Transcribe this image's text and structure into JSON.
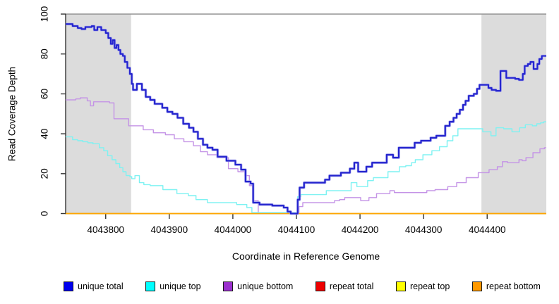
{
  "chart_data": {
    "type": "line",
    "title": "",
    "xlabel": "Coordinate in Reference Genome",
    "ylabel": "Read Coverage Depth",
    "xlim": [
      4043737,
      4044493
    ],
    "ylim": [
      0,
      100
    ],
    "x_ticks": [
      4043800,
      4043900,
      4044000,
      4044100,
      4044200,
      4044300,
      4044400
    ],
    "y_ticks": [
      0,
      20,
      40,
      60,
      80,
      100
    ],
    "grid": false,
    "legend_position": "bottom",
    "interpolation": "step-after",
    "shaded_region_color": "#dcdcdc",
    "shaded_regions": [
      {
        "x0": 4043737,
        "x1": 4043840
      },
      {
        "x0": 4044391,
        "x1": 4044493
      }
    ],
    "series": [
      {
        "key": "unique_total",
        "name": "unique total",
        "line_color": "#2323ce",
        "halo_color": "#a3a3ec",
        "legend_color": "#0000ee",
        "points": [
          [
            4043737,
            95
          ],
          [
            4043748,
            94
          ],
          [
            4043756,
            93
          ],
          [
            4043762,
            92.5
          ],
          [
            4043768,
            93.5
          ],
          [
            4043778,
            94
          ],
          [
            4043782,
            92
          ],
          [
            4043787,
            93.5
          ],
          [
            4043793,
            92
          ],
          [
            4043800,
            90.5
          ],
          [
            4043804,
            88
          ],
          [
            4043808,
            85
          ],
          [
            4043811,
            87
          ],
          [
            4043814,
            83
          ],
          [
            4043817,
            84.5
          ],
          [
            4043820,
            82
          ],
          [
            4043823,
            80
          ],
          [
            4043827,
            79
          ],
          [
            4043830,
            76
          ],
          [
            4043834,
            73
          ],
          [
            4043838,
            70
          ],
          [
            4043841,
            65
          ],
          [
            4043843,
            62
          ],
          [
            4043849,
            65
          ],
          [
            4043857,
            62
          ],
          [
            4043863,
            58.5
          ],
          [
            4043870,
            57
          ],
          [
            4043877,
            55
          ],
          [
            4043889,
            53
          ],
          [
            4043897,
            51
          ],
          [
            4043905,
            50
          ],
          [
            4043913,
            48
          ],
          [
            4043922,
            45
          ],
          [
            4043931,
            43
          ],
          [
            4043938,
            41
          ],
          [
            4043945,
            37.5
          ],
          [
            4043953,
            34.5
          ],
          [
            4043960,
            33
          ],
          [
            4043968,
            32
          ],
          [
            4043976,
            28.5
          ],
          [
            4043990,
            26.5
          ],
          [
            4044004,
            24.5
          ],
          [
            4044013,
            22
          ],
          [
            4044020,
            16
          ],
          [
            4044028,
            15
          ],
          [
            4044032,
            5.5
          ],
          [
            4044042,
            4.5
          ],
          [
            4044062,
            4
          ],
          [
            4044080,
            3
          ],
          [
            4044086,
            1
          ],
          [
            4044091,
            0
          ],
          [
            4044102,
            7
          ],
          [
            4044105,
            13
          ],
          [
            4044112,
            15.5
          ],
          [
            4044145,
            17
          ],
          [
            4044152,
            19
          ],
          [
            4044170,
            20.5
          ],
          [
            4044184,
            22.5
          ],
          [
            4044191,
            25.5
          ],
          [
            4044197,
            21
          ],
          [
            4044210,
            23.5
          ],
          [
            4044219,
            25.5
          ],
          [
            4044242,
            29.5
          ],
          [
            4044252,
            28
          ],
          [
            4044261,
            33
          ],
          [
            4044286,
            35.5
          ],
          [
            4044296,
            36.5
          ],
          [
            4044311,
            38
          ],
          [
            4044320,
            39
          ],
          [
            4044334,
            44
          ],
          [
            4044341,
            46
          ],
          [
            4044347,
            48
          ],
          [
            4044352,
            50
          ],
          [
            4044357,
            52
          ],
          [
            4044362,
            54.5
          ],
          [
            4044366,
            56.5
          ],
          [
            4044371,
            59
          ],
          [
            4044379,
            60
          ],
          [
            4044384,
            62.5
          ],
          [
            4044388,
            64.5
          ],
          [
            4044402,
            63
          ],
          [
            4044407,
            62
          ],
          [
            4044414,
            61.5
          ],
          [
            4044421,
            71.5
          ],
          [
            4044430,
            68
          ],
          [
            4044444,
            67.5
          ],
          [
            4044450,
            67
          ],
          [
            4044456,
            70
          ],
          [
            4044459,
            74
          ],
          [
            4044464,
            75
          ],
          [
            4044468,
            76
          ],
          [
            4044473,
            72.5
          ],
          [
            4044479,
            75
          ],
          [
            4044482,
            77.5
          ],
          [
            4044486,
            79
          ]
        ]
      },
      {
        "key": "unique_top",
        "name": "unique top",
        "line_color": "#7df2f2",
        "legend_color": "#00ffff",
        "points": [
          [
            4043737,
            38.5
          ],
          [
            4043748,
            37
          ],
          [
            4043756,
            36.5
          ],
          [
            4043764,
            36
          ],
          [
            4043772,
            35.5
          ],
          [
            4043780,
            35
          ],
          [
            4043790,
            33
          ],
          [
            4043797,
            31.5
          ],
          [
            4043803,
            29
          ],
          [
            4043810,
            27
          ],
          [
            4043816,
            25
          ],
          [
            4043822,
            23
          ],
          [
            4043827,
            21
          ],
          [
            4043832,
            19
          ],
          [
            4043838,
            18.5
          ],
          [
            4043841,
            17.5
          ],
          [
            4043846,
            19
          ],
          [
            4043853,
            15.5
          ],
          [
            4043860,
            14.5
          ],
          [
            4043870,
            14
          ],
          [
            4043890,
            12
          ],
          [
            4043912,
            10
          ],
          [
            4043930,
            9
          ],
          [
            4043942,
            7
          ],
          [
            4043960,
            5.5
          ],
          [
            4044006,
            4.5
          ],
          [
            4044022,
            3
          ],
          [
            4044030,
            0
          ],
          [
            4044102,
            8.5
          ],
          [
            4044107,
            9.5
          ],
          [
            4044147,
            11.5
          ],
          [
            4044186,
            15.5
          ],
          [
            4044195,
            13.5
          ],
          [
            4044212,
            16.5
          ],
          [
            4044221,
            18
          ],
          [
            4044244,
            21
          ],
          [
            4044262,
            23.5
          ],
          [
            4044272,
            24
          ],
          [
            4044281,
            25.5
          ],
          [
            4044287,
            27
          ],
          [
            4044299,
            29.5
          ],
          [
            4044313,
            31.5
          ],
          [
            4044325,
            33.5
          ],
          [
            4044337,
            36.5
          ],
          [
            4044346,
            39
          ],
          [
            4044354,
            42.5
          ],
          [
            4044393,
            41
          ],
          [
            4044406,
            39
          ],
          [
            4044414,
            43
          ],
          [
            4044426,
            42.5
          ],
          [
            4044439,
            41
          ],
          [
            4044451,
            43
          ],
          [
            4044460,
            44.5
          ],
          [
            4044471,
            44
          ],
          [
            4044478,
            45
          ],
          [
            4044484,
            45.5
          ],
          [
            4044489,
            46
          ]
        ]
      },
      {
        "key": "unique_bottom",
        "name": "unique bottom",
        "line_color": "#c493e6",
        "legend_color": "#9b30ce",
        "points": [
          [
            4043737,
            57
          ],
          [
            4043753,
            57.5
          ],
          [
            4043760,
            58
          ],
          [
            4043771,
            56.5
          ],
          [
            4043776,
            54
          ],
          [
            4043781,
            56
          ],
          [
            4043806,
            55.5
          ],
          [
            4043813,
            47.5
          ],
          [
            4043836,
            44
          ],
          [
            4043859,
            42
          ],
          [
            4043875,
            40.5
          ],
          [
            4043894,
            39.5
          ],
          [
            4043908,
            37.5
          ],
          [
            4043923,
            36
          ],
          [
            4043938,
            34
          ],
          [
            4043949,
            31
          ],
          [
            4043960,
            29.5
          ],
          [
            4043975,
            28
          ],
          [
            4043993,
            22.5
          ],
          [
            4044008,
            21
          ],
          [
            4044019,
            19
          ],
          [
            4044026,
            14
          ],
          [
            4044031,
            6.5
          ],
          [
            4044040,
            0
          ],
          [
            4044104,
            3.5
          ],
          [
            4044110,
            5.5
          ],
          [
            4044160,
            6.5
          ],
          [
            4044168,
            7
          ],
          [
            4044176,
            8
          ],
          [
            4044201,
            6.5
          ],
          [
            4044214,
            8
          ],
          [
            4044226,
            10
          ],
          [
            4044247,
            11.5
          ],
          [
            4044254,
            10.5
          ],
          [
            4044305,
            11.5
          ],
          [
            4044318,
            12
          ],
          [
            4044338,
            13.5
          ],
          [
            4044352,
            15.5
          ],
          [
            4044367,
            18
          ],
          [
            4044386,
            20.5
          ],
          [
            4044403,
            22
          ],
          [
            4044416,
            23.5
          ],
          [
            4044424,
            26
          ],
          [
            4044432,
            25.5
          ],
          [
            4044450,
            27
          ],
          [
            4044455,
            26.5
          ],
          [
            4044461,
            28
          ],
          [
            4044472,
            30.5
          ],
          [
            4044483,
            32.5
          ],
          [
            4044490,
            33
          ]
        ]
      },
      {
        "key": "repeat_total",
        "name": "repeat total",
        "line_color": "#dd2222",
        "legend_color": "#ee0000",
        "points": [
          [
            4043737,
            0
          ]
        ]
      },
      {
        "key": "repeat_top",
        "name": "repeat top",
        "line_color": "#f5f500",
        "legend_color": "#ffff00",
        "points": [
          [
            4043737,
            0
          ]
        ]
      },
      {
        "key": "repeat_bottom",
        "name": "repeat bottom",
        "line_color": "#ffa500",
        "legend_color": "#ff9900",
        "points": [
          [
            4043737,
            0
          ]
        ]
      }
    ]
  }
}
